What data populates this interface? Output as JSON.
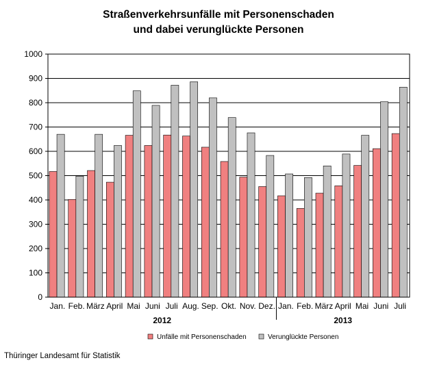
{
  "chart_data": {
    "type": "bar",
    "title": "Straßenverkehrsunfälle mit Personenschaden",
    "subtitle": "und dabei verunglückte Personen",
    "categories": [
      "Jan.",
      "Feb.",
      "März",
      "April",
      "Mai",
      "Juni",
      "Juli",
      "Aug.",
      "Sep.",
      "Okt.",
      "Nov.",
      "Dez.",
      "Jan.",
      "Feb.",
      "März",
      "April",
      "Mai",
      "Juni",
      "Juli"
    ],
    "groups": [
      {
        "label": "2012",
        "count": 12
      },
      {
        "label": "2013",
        "count": 7
      }
    ],
    "series": [
      {
        "name": "Unfälle mit Personenschaden",
        "color": "#f08080",
        "values": [
          517,
          402,
          521,
          473,
          666,
          624,
          667,
          663,
          617,
          558,
          494,
          455,
          417,
          365,
          428,
          458,
          542,
          611,
          673
        ]
      },
      {
        "name": "Verunglückte Personen",
        "color": "#c0c0c0",
        "values": [
          670,
          498,
          670,
          624,
          849,
          789,
          872,
          886,
          820,
          739,
          676,
          583,
          507,
          492,
          540,
          589,
          666,
          804,
          864
        ]
      }
    ],
    "ylim": [
      0,
      1000
    ],
    "yticks": [
      0,
      100,
      200,
      300,
      400,
      500,
      600,
      700,
      800,
      900,
      1000
    ],
    "grid": true,
    "legend": "bottom"
  },
  "source": "Thüringer Landesamt für Statistik"
}
